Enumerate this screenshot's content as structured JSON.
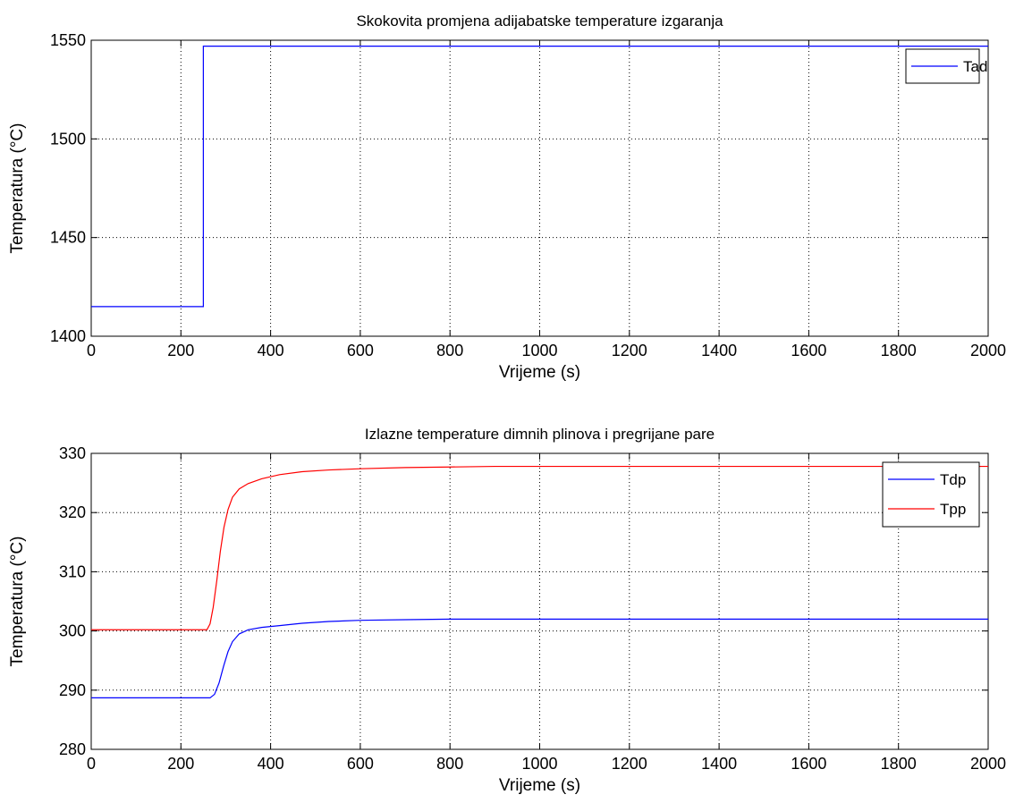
{
  "chart_data": [
    {
      "type": "line",
      "title": "Skokovita promjena adijabatske temperature izgaranja",
      "xlabel": "Vrijeme (s)",
      "ylabel": "Temperatura (°C)",
      "xlim": [
        0,
        2000
      ],
      "ylim": [
        1400,
        1550
      ],
      "xticks": [
        0,
        200,
        400,
        600,
        800,
        1000,
        1200,
        1400,
        1600,
        1800,
        2000
      ],
      "yticks": [
        1400,
        1450,
        1500,
        1550
      ],
      "grid": true,
      "legend_position": "top-right",
      "series": [
        {
          "name": "Tad",
          "color": "#0000ff",
          "x": [
            0,
            250,
            250,
            2000
          ],
          "y": [
            1415,
            1415,
            1547,
            1547
          ]
        }
      ]
    },
    {
      "type": "line",
      "title": "Izlazne temperature dimnih plinova i pregrijane pare",
      "xlabel": "Vrijeme (s)",
      "ylabel": "Temperatura (°C)",
      "xlim": [
        0,
        2000
      ],
      "ylim": [
        280,
        330
      ],
      "xticks": [
        0,
        200,
        400,
        600,
        800,
        1000,
        1200,
        1400,
        1600,
        1800,
        2000
      ],
      "yticks": [
        280,
        290,
        300,
        310,
        320,
        330
      ],
      "grid": true,
      "legend_position": "top-right",
      "series": [
        {
          "name": "Tdp",
          "color": "#0000ff",
          "x": [
            0,
            265,
            275,
            285,
            295,
            305,
            315,
            330,
            350,
            380,
            420,
            470,
            530,
            600,
            700,
            800,
            900,
            1000,
            1200,
            1500,
            1800,
            2000
          ],
          "y": [
            288.7,
            288.7,
            289.3,
            291.2,
            294.0,
            296.5,
            298.2,
            299.5,
            300.2,
            300.6,
            300.9,
            301.3,
            301.6,
            301.8,
            301.9,
            302.0,
            302.0,
            302.0,
            302.0,
            302.0,
            302.0,
            302.0
          ]
        },
        {
          "name": "Tpp",
          "color": "#ff0000",
          "x": [
            0,
            258,
            265,
            272,
            280,
            288,
            296,
            305,
            315,
            330,
            350,
            380,
            420,
            470,
            530,
            600,
            700,
            800,
            900,
            1000,
            1200,
            1500,
            1800,
            2000
          ],
          "y": [
            300.2,
            300.2,
            301.2,
            304.0,
            308.5,
            313.5,
            317.5,
            320.5,
            322.6,
            324.0,
            324.9,
            325.7,
            326.4,
            326.9,
            327.2,
            327.4,
            327.6,
            327.7,
            327.8,
            327.8,
            327.8,
            327.8,
            327.8,
            327.8
          ]
        }
      ]
    }
  ]
}
